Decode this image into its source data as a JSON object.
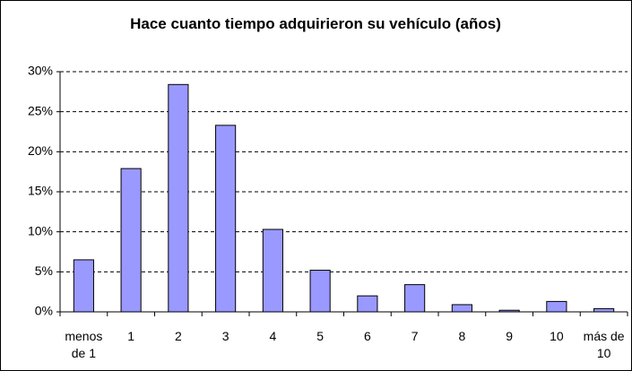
{
  "chart_data": {
    "type": "bar",
    "title": "Hace cuanto tiempo adquirieron su vehículo (años)",
    "categories": [
      "menos de 1",
      "1",
      "2",
      "3",
      "4",
      "5",
      "6",
      "7",
      "8",
      "9",
      "10",
      "más de 10"
    ],
    "values": [
      6.5,
      17.9,
      28.4,
      23.3,
      10.3,
      5.2,
      2.0,
      3.4,
      0.9,
      0.2,
      1.3,
      0.4
    ],
    "color": "#9999ff",
    "ylim": [
      0,
      30
    ],
    "yticks": [
      {
        "value": 0,
        "label": "0%"
      },
      {
        "value": 5,
        "label": "5%"
      },
      {
        "value": 10,
        "label": "10%"
      },
      {
        "value": 15,
        "label": "15%"
      },
      {
        "value": 20,
        "label": "20%"
      },
      {
        "value": 25,
        "label": "25%"
      },
      {
        "value": 30,
        "label": "30%"
      }
    ],
    "grid": true
  }
}
